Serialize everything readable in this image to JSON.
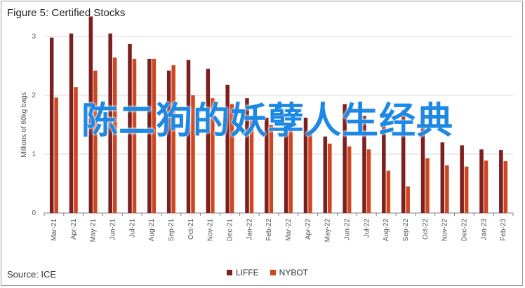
{
  "title": "Figure 5: Certified Stocks",
  "source": "Source: ICE",
  "overlay_text": "陈二狗的妖孽人生经典",
  "colors": {
    "LIFFE": "#7b1f1f",
    "NYBOT": "#d0461e",
    "grid": "#d9d9d9",
    "overlay": "#1e88e5"
  },
  "chart_data": {
    "type": "bar",
    "title": "Figure 5: Certified Stocks",
    "ylabel": "Millions of 60kg bags",
    "ylim": [
      0,
      3
    ],
    "yticks": [
      "0",
      "1",
      "2",
      "3"
    ],
    "grid": true,
    "legend_placement": "bottom",
    "categories": [
      "Mar-21",
      "Apr-21",
      "May-21",
      "Jun-21",
      "Jul-21",
      "Aug-21",
      "Sep-21",
      "Oct-21",
      "Nov-21",
      "Dec-21",
      "Jan-22",
      "Feb-22",
      "Mar-22",
      "Apr-22",
      "May-22",
      "Jun-22",
      "Jul-22",
      "Aug-22",
      "Sep-22",
      "Oct-22",
      "Nov-22",
      "Dec-22",
      "Jan-23",
      "Feb-23"
    ],
    "series": [
      {
        "name": "LIFFE",
        "values": [
          2.98,
          3.05,
          3.34,
          3.05,
          2.87,
          2.62,
          2.42,
          2.6,
          2.45,
          2.18,
          1.95,
          1.62,
          1.5,
          1.62,
          1.3,
          1.85,
          1.65,
          1.55,
          1.75,
          1.5,
          1.2,
          1.15,
          1.08,
          1.07
        ]
      },
      {
        "name": "NYBOT",
        "values": [
          1.96,
          2.14,
          2.42,
          2.64,
          2.62,
          2.62,
          2.51,
          2.0,
          1.95,
          1.85,
          1.65,
          1.5,
          1.4,
          1.34,
          1.18,
          1.13,
          1.08,
          0.72,
          0.45,
          0.93,
          0.81,
          0.79,
          0.89,
          0.88
        ]
      }
    ]
  }
}
